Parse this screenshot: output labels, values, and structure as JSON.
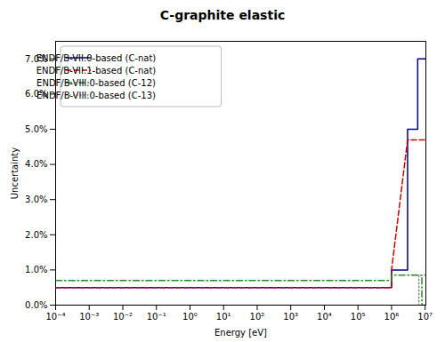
{
  "chart_data": {
    "type": "line",
    "title": "C-graphite elastic",
    "x_label": "Energy [eV]",
    "y_label": "Uncertainty",
    "log": "x",
    "grid": false,
    "legend": "upper left",
    "xlim": [
      0.0001,
      10500000
    ],
    "ylim": [
      0.0,
      0.075
    ],
    "xticks": [
      {
        "value": 0.0001,
        "label": "10⁻⁴"
      },
      {
        "value": 0.001,
        "label": "10⁻³"
      },
      {
        "value": 0.01,
        "label": "10⁻²"
      },
      {
        "value": 0.1,
        "label": "10⁻¹"
      },
      {
        "value": 1,
        "label": "10⁰"
      },
      {
        "value": 10,
        "label": "10¹"
      },
      {
        "value": 100,
        "label": "10²"
      },
      {
        "value": 1000,
        "label": "10³"
      },
      {
        "value": 10000,
        "label": "10⁴"
      },
      {
        "value": 100000,
        "label": "10⁵"
      },
      {
        "value": 1000000,
        "label": "10⁶"
      },
      {
        "value": 10000000,
        "label": "10⁷"
      }
    ],
    "yticks": [
      {
        "value": 0.0,
        "label": "0.0%"
      },
      {
        "value": 0.01,
        "label": "1.0%"
      },
      {
        "value": 0.02,
        "label": "2.0%"
      },
      {
        "value": 0.03,
        "label": "3.0%"
      },
      {
        "value": 0.04,
        "label": "4.0%"
      },
      {
        "value": 0.05,
        "label": "5.0%"
      },
      {
        "value": 0.06,
        "label": "6.0%"
      },
      {
        "value": 0.07,
        "label": "7.0%"
      }
    ],
    "series": [
      {
        "name": "ENDF/B-VII.0-based (C-nat)",
        "color": "#00008B",
        "line_style": "solid",
        "x": [
          0.0001,
          1000000,
          1000000,
          3000000,
          3000000,
          6000000,
          6000000,
          10500000
        ],
        "values": [
          0.005,
          0.005,
          0.01,
          0.01,
          0.05,
          0.05,
          0.07,
          0.07
        ]
      },
      {
        "name": "ENDF/B-VII.1-based (C-nat)",
        "color": "#CC0000",
        "line_style": "dashed",
        "x": [
          0.0001,
          1000000,
          1000000,
          3000000,
          3000000,
          10500000
        ],
        "values": [
          0.005,
          0.005,
          0.01,
          0.047,
          0.047,
          0.047
        ]
      },
      {
        "name": "ENDF/B-VIII.0-based (C-12)",
        "color": "#228B22",
        "line_style": "dashdot",
        "x": [
          0.0001,
          1000000,
          1000000,
          8000000,
          8000000,
          10500000
        ],
        "values": [
          0.007,
          0.007,
          0.0085,
          0.0085,
          0.0,
          0.0
        ]
      },
      {
        "name": "ENDF/B-VIII.0-based (C-13)",
        "color": "#888888",
        "line_style": "dotted",
        "x": [
          0.0001,
          6500000,
          6500000,
          10500000
        ],
        "values": [
          0.0,
          0.0,
          0.0085,
          0.0085
        ]
      }
    ]
  }
}
